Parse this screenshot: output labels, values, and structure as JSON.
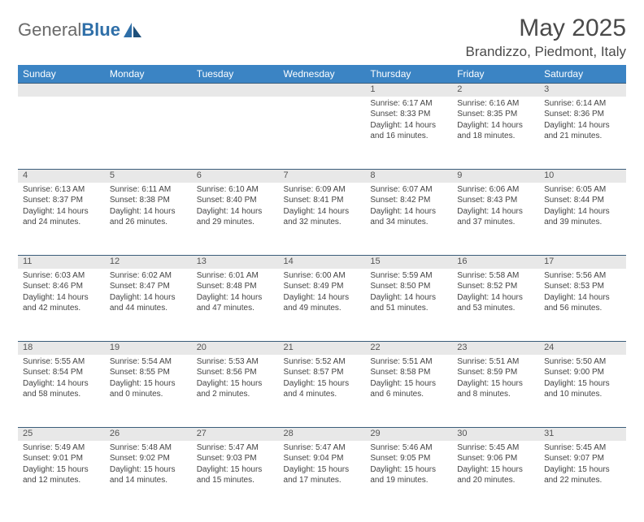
{
  "logo": {
    "text_gray": "General",
    "text_blue": "Blue"
  },
  "title": "May 2025",
  "location": "Brandizzo, Piedmont, Italy",
  "colors": {
    "header_bg": "#3b84c4",
    "header_text": "#ffffff",
    "daynum_bg": "#e8e8e8",
    "row_border": "#3b5d7a",
    "text": "#444444",
    "logo_gray": "#6a6a6a",
    "logo_blue": "#2f6fa8"
  },
  "day_headers": [
    "Sunday",
    "Monday",
    "Tuesday",
    "Wednesday",
    "Thursday",
    "Friday",
    "Saturday"
  ],
  "weeks": [
    {
      "nums": [
        "",
        "",
        "",
        "",
        "1",
        "2",
        "3"
      ],
      "cells": [
        [],
        [],
        [],
        [],
        [
          "Sunrise: 6:17 AM",
          "Sunset: 8:33 PM",
          "Daylight: 14 hours",
          "and 16 minutes."
        ],
        [
          "Sunrise: 6:16 AM",
          "Sunset: 8:35 PM",
          "Daylight: 14 hours",
          "and 18 minutes."
        ],
        [
          "Sunrise: 6:14 AM",
          "Sunset: 8:36 PM",
          "Daylight: 14 hours",
          "and 21 minutes."
        ]
      ]
    },
    {
      "nums": [
        "4",
        "5",
        "6",
        "7",
        "8",
        "9",
        "10"
      ],
      "cells": [
        [
          "Sunrise: 6:13 AM",
          "Sunset: 8:37 PM",
          "Daylight: 14 hours",
          "and 24 minutes."
        ],
        [
          "Sunrise: 6:11 AM",
          "Sunset: 8:38 PM",
          "Daylight: 14 hours",
          "and 26 minutes."
        ],
        [
          "Sunrise: 6:10 AM",
          "Sunset: 8:40 PM",
          "Daylight: 14 hours",
          "and 29 minutes."
        ],
        [
          "Sunrise: 6:09 AM",
          "Sunset: 8:41 PM",
          "Daylight: 14 hours",
          "and 32 minutes."
        ],
        [
          "Sunrise: 6:07 AM",
          "Sunset: 8:42 PM",
          "Daylight: 14 hours",
          "and 34 minutes."
        ],
        [
          "Sunrise: 6:06 AM",
          "Sunset: 8:43 PM",
          "Daylight: 14 hours",
          "and 37 minutes."
        ],
        [
          "Sunrise: 6:05 AM",
          "Sunset: 8:44 PM",
          "Daylight: 14 hours",
          "and 39 minutes."
        ]
      ]
    },
    {
      "nums": [
        "11",
        "12",
        "13",
        "14",
        "15",
        "16",
        "17"
      ],
      "cells": [
        [
          "Sunrise: 6:03 AM",
          "Sunset: 8:46 PM",
          "Daylight: 14 hours",
          "and 42 minutes."
        ],
        [
          "Sunrise: 6:02 AM",
          "Sunset: 8:47 PM",
          "Daylight: 14 hours",
          "and 44 minutes."
        ],
        [
          "Sunrise: 6:01 AM",
          "Sunset: 8:48 PM",
          "Daylight: 14 hours",
          "and 47 minutes."
        ],
        [
          "Sunrise: 6:00 AM",
          "Sunset: 8:49 PM",
          "Daylight: 14 hours",
          "and 49 minutes."
        ],
        [
          "Sunrise: 5:59 AM",
          "Sunset: 8:50 PM",
          "Daylight: 14 hours",
          "and 51 minutes."
        ],
        [
          "Sunrise: 5:58 AM",
          "Sunset: 8:52 PM",
          "Daylight: 14 hours",
          "and 53 minutes."
        ],
        [
          "Sunrise: 5:56 AM",
          "Sunset: 8:53 PM",
          "Daylight: 14 hours",
          "and 56 minutes."
        ]
      ]
    },
    {
      "nums": [
        "18",
        "19",
        "20",
        "21",
        "22",
        "23",
        "24"
      ],
      "cells": [
        [
          "Sunrise: 5:55 AM",
          "Sunset: 8:54 PM",
          "Daylight: 14 hours",
          "and 58 minutes."
        ],
        [
          "Sunrise: 5:54 AM",
          "Sunset: 8:55 PM",
          "Daylight: 15 hours",
          "and 0 minutes."
        ],
        [
          "Sunrise: 5:53 AM",
          "Sunset: 8:56 PM",
          "Daylight: 15 hours",
          "and 2 minutes."
        ],
        [
          "Sunrise: 5:52 AM",
          "Sunset: 8:57 PM",
          "Daylight: 15 hours",
          "and 4 minutes."
        ],
        [
          "Sunrise: 5:51 AM",
          "Sunset: 8:58 PM",
          "Daylight: 15 hours",
          "and 6 minutes."
        ],
        [
          "Sunrise: 5:51 AM",
          "Sunset: 8:59 PM",
          "Daylight: 15 hours",
          "and 8 minutes."
        ],
        [
          "Sunrise: 5:50 AM",
          "Sunset: 9:00 PM",
          "Daylight: 15 hours",
          "and 10 minutes."
        ]
      ]
    },
    {
      "nums": [
        "25",
        "26",
        "27",
        "28",
        "29",
        "30",
        "31"
      ],
      "cells": [
        [
          "Sunrise: 5:49 AM",
          "Sunset: 9:01 PM",
          "Daylight: 15 hours",
          "and 12 minutes."
        ],
        [
          "Sunrise: 5:48 AM",
          "Sunset: 9:02 PM",
          "Daylight: 15 hours",
          "and 14 minutes."
        ],
        [
          "Sunrise: 5:47 AM",
          "Sunset: 9:03 PM",
          "Daylight: 15 hours",
          "and 15 minutes."
        ],
        [
          "Sunrise: 5:47 AM",
          "Sunset: 9:04 PM",
          "Daylight: 15 hours",
          "and 17 minutes."
        ],
        [
          "Sunrise: 5:46 AM",
          "Sunset: 9:05 PM",
          "Daylight: 15 hours",
          "and 19 minutes."
        ],
        [
          "Sunrise: 5:45 AM",
          "Sunset: 9:06 PM",
          "Daylight: 15 hours",
          "and 20 minutes."
        ],
        [
          "Sunrise: 5:45 AM",
          "Sunset: 9:07 PM",
          "Daylight: 15 hours",
          "and 22 minutes."
        ]
      ]
    }
  ]
}
